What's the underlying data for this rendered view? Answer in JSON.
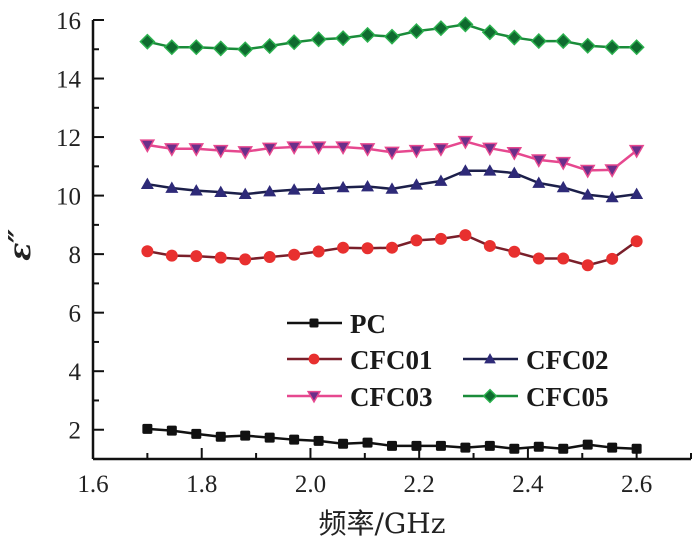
{
  "chart_data": {
    "type": "line",
    "title": "",
    "xlabel": "频率/GHz",
    "ylabel": "ε″",
    "xlim": [
      1.6,
      2.7
    ],
    "ylim": [
      1,
      16
    ],
    "xticks": [
      1.6,
      1.8,
      2.0,
      2.2,
      2.4,
      2.6
    ],
    "xtick_labels": [
      "1.6",
      "1.8",
      "2.0",
      "2.2",
      "2.4",
      "2.6"
    ],
    "yticks": [
      2,
      4,
      6,
      8,
      10,
      12,
      14,
      16
    ],
    "ytick_labels": [
      "2",
      "4",
      "6",
      "8",
      "10",
      "12",
      "14",
      "16"
    ],
    "grid": false,
    "legend_position": "center-right",
    "x": [
      1.7,
      1.745,
      1.79,
      1.835,
      1.88,
      1.925,
      1.97,
      2.015,
      2.06,
      2.105,
      2.15,
      2.195,
      2.24,
      2.285,
      2.33,
      2.375,
      2.42,
      2.465,
      2.51,
      2.555,
      2.6
    ],
    "series": [
      {
        "name": "PC",
        "color": "#111111",
        "marker": "square",
        "values": [
          2.03,
          1.97,
          1.86,
          1.76,
          1.8,
          1.73,
          1.66,
          1.62,
          1.52,
          1.56,
          1.45,
          1.45,
          1.45,
          1.39,
          1.45,
          1.35,
          1.42,
          1.35,
          1.49,
          1.39,
          1.35
        ]
      },
      {
        "name": "CFC01",
        "color": "#e8302f",
        "line_color": "#7a1f2a",
        "marker": "circle",
        "values": [
          8.1,
          7.95,
          7.93,
          7.88,
          7.82,
          7.9,
          7.98,
          8.09,
          8.22,
          8.2,
          8.22,
          8.47,
          8.52,
          8.65,
          8.28,
          8.08,
          7.85,
          7.85,
          7.62,
          7.84,
          8.44
        ]
      },
      {
        "name": "CFC02",
        "color": "#2e2a78",
        "line_color": "#1c1f4a",
        "marker": "triangle-up",
        "values": [
          10.39,
          10.26,
          10.17,
          10.12,
          10.05,
          10.14,
          10.2,
          10.22,
          10.28,
          10.31,
          10.23,
          10.37,
          10.5,
          10.85,
          10.85,
          10.77,
          10.43,
          10.28,
          10.03,
          9.94,
          10.05
        ]
      },
      {
        "name": "CFC03",
        "color": "#6a2f8a",
        "line_color": "#e6488f",
        "marker": "triangle-down",
        "values": [
          11.73,
          11.6,
          11.6,
          11.54,
          11.5,
          11.62,
          11.66,
          11.66,
          11.66,
          11.6,
          11.48,
          11.54,
          11.6,
          11.85,
          11.62,
          11.47,
          11.22,
          11.13,
          10.86,
          10.88,
          11.54
        ]
      },
      {
        "name": "CFC05",
        "color": "#0f6b2f",
        "line_color": "#1a8c3a",
        "marker": "diamond",
        "values": [
          15.26,
          15.07,
          15.07,
          15.03,
          15.0,
          15.11,
          15.24,
          15.34,
          15.38,
          15.49,
          15.43,
          15.62,
          15.72,
          15.85,
          15.58,
          15.4,
          15.28,
          15.28,
          15.12,
          15.07,
          15.07
        ]
      }
    ]
  }
}
